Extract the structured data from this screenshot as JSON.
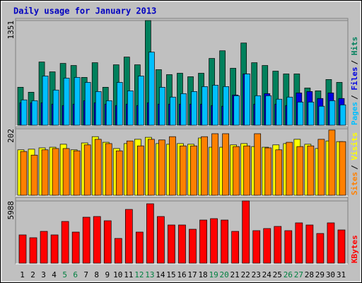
{
  "chart_data": [
    {
      "type": "bar",
      "title": "Daily usage for January 2013",
      "categories": [
        "1",
        "2",
        "3",
        "4",
        "5",
        "6",
        "7",
        "8",
        "9",
        "10",
        "11",
        "12",
        "13",
        "14",
        "15",
        "16",
        "17",
        "18",
        "19",
        "20",
        "21",
        "22",
        "23",
        "24",
        "25",
        "26",
        "27",
        "28",
        "29",
        "30",
        "31"
      ],
      "highlighted_categories": [
        4,
        5,
        11,
        12,
        18,
        19,
        25,
        26
      ],
      "highlight_color": "#008040",
      "ylim": [
        0,
        1351
      ],
      "yticks": [
        1351
      ],
      "legend_separator": "/",
      "series": [
        {
          "name": "Hits",
          "color": "#00805c",
          "values": [
            490,
            426,
            816,
            689,
            798,
            771,
            617,
            807,
            490,
            780,
            880,
            780,
            1351,
            717,
            653,
            671,
            626,
            671,
            862,
            961,
            735,
            1061,
            807,
            771,
            698,
            662,
            662,
            481,
            444,
            590,
            553
          ]
        },
        {
          "name": "Files",
          "color": "#0000e0",
          "values": [
            290,
            290,
            290,
            272,
            254,
            272,
            317,
            290,
            272,
            254,
            272,
            254,
            290,
            272,
            272,
            272,
            272,
            272,
            254,
            245,
            390,
            662,
            272,
            408,
            272,
            254,
            417,
            435,
            345,
            417,
            345
          ]
        },
        {
          "name": "Pages",
          "color": "#00bfff",
          "values": [
            327,
            317,
            635,
            454,
            608,
            617,
            553,
            435,
            317,
            553,
            444,
            635,
            943,
            490,
            363,
            408,
            435,
            499,
            517,
            499,
            381,
            662,
            381,
            381,
            336,
            363,
            299,
            299,
            245,
            317,
            263
          ]
        }
      ]
    },
    {
      "type": "bar",
      "ylim": [
        0,
        202
      ],
      "yticks": [
        202
      ],
      "legend_separator": "/",
      "series": [
        {
          "name": "Visits",
          "color": "#ffff00",
          "values": [
            138,
            140,
            144,
            146,
            155,
            138,
            159,
            178,
            161,
            142,
            157,
            170,
            176,
            157,
            155,
            157,
            155,
            174,
            146,
            146,
            153,
            157,
            148,
            146,
            153,
            157,
            170,
            155,
            142,
            165,
            163
          ]
        },
        {
          "name": "Sites",
          "color": "#ff8000",
          "values": [
            133,
            122,
            138,
            142,
            142,
            135,
            153,
            170,
            157,
            135,
            165,
            150,
            170,
            168,
            178,
            150,
            150,
            178,
            187,
            187,
            148,
            150,
            187,
            144,
            138,
            161,
            148,
            150,
            170,
            198,
            163
          ]
        }
      ]
    },
    {
      "type": "bar",
      "ylim": [
        0,
        5988
      ],
      "yticks": [
        5988
      ],
      "series": [
        {
          "name": "KBytes",
          "color": "#ff0000",
          "values": [
            2722,
            2450,
            3062,
            2722,
            4015,
            2994,
            4423,
            4491,
            4083,
            2382,
            5172,
            2994,
            5716,
            4491,
            3675,
            3675,
            3266,
            4151,
            4287,
            4151,
            3062,
            5988,
            3130,
            3334,
            3539,
            3130,
            3879,
            3675,
            2858,
            3879,
            3198
          ]
        }
      ]
    }
  ]
}
